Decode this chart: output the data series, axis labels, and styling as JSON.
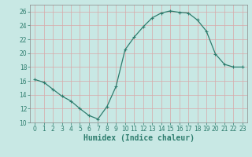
{
  "x": [
    0,
    1,
    2,
    3,
    4,
    5,
    6,
    7,
    8,
    9,
    10,
    11,
    12,
    13,
    14,
    15,
    16,
    17,
    18,
    19,
    20,
    21,
    22,
    23
  ],
  "y": [
    16.2,
    15.8,
    14.8,
    13.8,
    13.1,
    12.0,
    11.0,
    10.5,
    12.3,
    15.2,
    20.5,
    22.3,
    23.8,
    25.1,
    25.8,
    26.1,
    25.9,
    25.8,
    24.8,
    23.2,
    19.9,
    18.4,
    18.0,
    18.0
  ],
  "line_color": "#2e7d6e",
  "marker": "+",
  "marker_size": 3,
  "marker_linewidth": 0.8,
  "line_width": 0.9,
  "background_color": "#c8e8e4",
  "grid_color": "#d9a8a8",
  "xlabel": "Humidex (Indice chaleur)",
  "ylim": [
    10,
    27
  ],
  "xlim": [
    -0.5,
    23.5
  ],
  "yticks": [
    10,
    12,
    14,
    16,
    18,
    20,
    22,
    24,
    26
  ],
  "xticks": [
    0,
    1,
    2,
    3,
    4,
    5,
    6,
    7,
    8,
    9,
    10,
    11,
    12,
    13,
    14,
    15,
    16,
    17,
    18,
    19,
    20,
    21,
    22,
    23
  ],
  "tick_label_fontsize": 5.5,
  "xlabel_fontsize": 7,
  "xlabel_color": "#2e7d6e"
}
